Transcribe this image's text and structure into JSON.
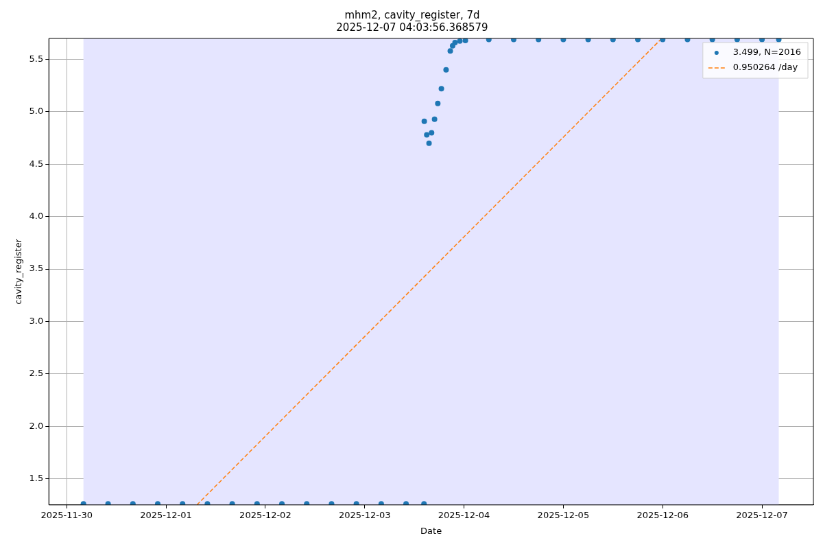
{
  "chart_data": {
    "type": "scatter",
    "title": "mhm2, cavity_register, 7d",
    "subtitle": "2025-12-07 04:03:56.368579",
    "xlabel": "Date",
    "ylabel": "cavity_register",
    "xlim": [
      "2025-11-29T19:42",
      "2025-12-07T12:25"
    ],
    "xticks": [
      "2025-11-30",
      "2025-12-01",
      "2025-12-02",
      "2025-12-03",
      "2025-12-04",
      "2025-12-05",
      "2025-12-06",
      "2025-12-07"
    ],
    "ylim": [
      1.25,
      5.7
    ],
    "yticks": [
      1.5,
      {
        "value": 2,
        "label": "2.0"
      },
      2.5,
      {
        "value": 3,
        "label": "3.0"
      },
      3.5,
      {
        "value": 4,
        "label": "4.0"
      },
      4.5,
      {
        "value": 5,
        "label": "5.0"
      },
      5.5
    ],
    "grid": true,
    "legend": "top right",
    "bands": [
      {
        "axis": "x",
        "from": "2025-11-30T04:03",
        "to": "2025-12-07T04:03",
        "color": "#e5e5ff"
      }
    ],
    "series": [
      {
        "name": "3.499, N=2016",
        "marker": "circle",
        "color": "#1f77b4",
        "x": [
          "2025-11-30T04:03",
          "2025-11-30T10:00",
          "2025-11-30T16:00",
          "2025-11-30T22:00",
          "2025-12-01T04:00",
          "2025-12-01T10:00",
          "2025-12-01T16:00",
          "2025-12-01T22:00",
          "2025-12-02T04:00",
          "2025-12-02T10:00",
          "2025-12-02T16:00",
          "2025-12-02T22:00",
          "2025-12-03T04:00",
          "2025-12-03T10:00",
          "2025-12-03T14:20",
          "2025-12-03T14:24",
          "2025-12-03T15:00",
          "2025-12-03T15:33",
          "2025-12-03T16:10",
          "2025-12-03T16:53",
          "2025-12-03T17:40",
          "2025-12-03T18:32",
          "2025-12-03T19:40",
          "2025-12-03T20:41",
          "2025-12-03T21:15",
          "2025-12-03T21:50",
          "2025-12-03T23:00",
          "2025-12-04T00:20",
          "2025-12-04T06:00",
          "2025-12-04T12:00",
          "2025-12-04T18:00",
          "2025-12-05T00:00",
          "2025-12-05T06:00",
          "2025-12-05T12:00",
          "2025-12-05T18:00",
          "2025-12-06T00:00",
          "2025-12-06T06:00",
          "2025-12-06T12:00",
          "2025-12-06T18:00",
          "2025-12-07T00:00",
          "2025-12-07T04:03"
        ],
        "values": [
          1.26,
          1.26,
          1.26,
          1.26,
          1.26,
          1.26,
          1.26,
          1.26,
          1.26,
          1.26,
          1.26,
          1.26,
          1.26,
          1.26,
          1.26,
          4.91,
          4.78,
          4.7,
          4.8,
          4.93,
          5.08,
          5.22,
          5.4,
          5.58,
          5.63,
          5.66,
          5.675,
          5.68,
          5.69,
          5.69,
          5.69,
          5.69,
          5.69,
          5.69,
          5.69,
          5.69,
          5.69,
          5.69,
          5.69,
          5.69,
          5.69
        ]
      },
      {
        "name": "0.950264 /day",
        "type": "line",
        "marker": "none",
        "line_style": "dashed",
        "color": "#ff7f0e",
        "x": [
          "2025-12-01T07:27",
          "2025-12-05T23:46"
        ],
        "values": [
          1.25,
          5.7
        ]
      }
    ]
  }
}
